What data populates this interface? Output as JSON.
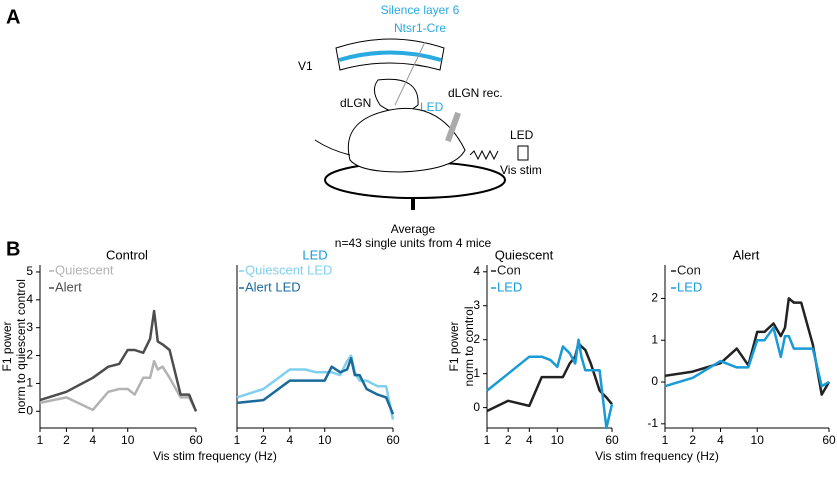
{
  "figure": {
    "panel_a_label": "A",
    "panel_b_label": "B",
    "diagram": {
      "title_lines": [
        "Silence layer 6",
        "Ntsr1-Cre"
      ],
      "v1": "V1",
      "dlgn": "dLGN",
      "led_opto": "LED",
      "dlgn_rec": "dLGN rec.",
      "led_stim": "LED",
      "vis_stim": "Vis stim"
    },
    "average_title": "Average",
    "average_subtitle": "n=43 single units from 4 mice"
  },
  "chart_data": [
    {
      "type": "line",
      "title": "Control",
      "title_color": "#000000",
      "log_x": true,
      "ylabel": [
        "F1 power",
        "norm to quiescent control"
      ],
      "xlabel": "Vis stim frequency (Hz)",
      "x": [
        1,
        2,
        4,
        6,
        8,
        10,
        12,
        15,
        18,
        20,
        22,
        25,
        30,
        40,
        50,
        60
      ],
      "xlim": [
        1,
        60
      ],
      "xticks": [
        1,
        2,
        4,
        10,
        60
      ],
      "ylim": [
        -0.6,
        5.25
      ],
      "yticks": [
        0,
        1,
        2,
        3,
        4,
        5
      ],
      "series": [
        {
          "name": "Quiescent",
          "color": "#b3b3b3",
          "values": [
            0.3,
            0.5,
            0.05,
            0.7,
            0.8,
            0.8,
            0.6,
            1.2,
            1.2,
            1.8,
            1.5,
            1.6,
            1.2,
            0.5,
            0.5,
            0
          ]
        },
        {
          "name": "Alert",
          "color": "#4d4d4d",
          "values": [
            0.4,
            0.7,
            1.2,
            1.6,
            1.7,
            2.2,
            2.2,
            2.1,
            2.6,
            3.6,
            2.5,
            2.4,
            2.2,
            0.6,
            0.6,
            0
          ]
        }
      ]
    },
    {
      "type": "line",
      "title": "LED",
      "title_color": "#1a9ad6",
      "log_x": true,
      "x": [
        1,
        2,
        4,
        6,
        8,
        10,
        12,
        15,
        18,
        20,
        22,
        25,
        30,
        40,
        50,
        60
      ],
      "xlim": [
        1,
        60
      ],
      "xticks": [
        1,
        2,
        4,
        10,
        60
      ],
      "ylim": [
        -0.6,
        5.25
      ],
      "series": [
        {
          "name": "Quiescent LED",
          "color": "#7fd0ef",
          "values": [
            0.5,
            0.8,
            1.5,
            1.5,
            1.4,
            1.4,
            1.4,
            1.3,
            1.8,
            2.0,
            1.4,
            1.1,
            1.1,
            0.9,
            0.9,
            -0.3
          ]
        },
        {
          "name": "Alert LED",
          "color": "#1a6a9a",
          "values": [
            0.3,
            0.4,
            1.1,
            1.1,
            1.1,
            1.1,
            1.6,
            1.4,
            1.5,
            1.9,
            1.3,
            1.3,
            0.8,
            0.6,
            0.5,
            -0.1
          ]
        }
      ]
    },
    {
      "type": "line",
      "title": "Quiescent",
      "title_color": "#000000",
      "log_x": true,
      "ylabel": [
        "F1 power",
        "norm to control"
      ],
      "xlabel": "Vis stim frequency (Hz)",
      "x": [
        1,
        2,
        4,
        6,
        8,
        10,
        12,
        15,
        18,
        20,
        22,
        25,
        30,
        40,
        50,
        60
      ],
      "xlim": [
        1,
        60
      ],
      "xticks": [
        1,
        2,
        4,
        10,
        60
      ],
      "ylim": [
        -0.6,
        4.2
      ],
      "yticks": [
        0,
        1,
        2,
        3,
        4
      ],
      "series": [
        {
          "name": "Con",
          "color": "#222222",
          "values": [
            -0.1,
            0.2,
            0.05,
            0.9,
            0.9,
            0.9,
            0.9,
            1.3,
            1.5,
            1.9,
            1.8,
            1.7,
            1.3,
            0.5,
            0.3,
            0.1
          ]
        },
        {
          "name": "LED",
          "color": "#1a9ad6",
          "values": [
            0.5,
            1.0,
            1.5,
            1.5,
            1.4,
            1.2,
            1.8,
            1.6,
            1.3,
            2.0,
            1.5,
            1.1,
            1.1,
            1.1,
            -0.6,
            0.1
          ]
        }
      ]
    },
    {
      "type": "line",
      "title": "Alert",
      "title_color": "#000000",
      "log_x": true,
      "x": [
        1,
        2,
        4,
        6,
        8,
        10,
        12,
        15,
        18,
        20,
        22,
        25,
        30,
        40,
        50,
        60
      ],
      "xlim": [
        1,
        60
      ],
      "xticks": [
        1,
        2,
        4,
        10,
        60
      ],
      "ylim": [
        -1.1,
        2.8
      ],
      "yticks": [
        -1,
        0,
        1,
        2
      ],
      "series": [
        {
          "name": "Con",
          "color": "#222222",
          "values": [
            0.15,
            0.25,
            0.45,
            0.8,
            0.4,
            1.2,
            1.2,
            1.4,
            1.1,
            1.3,
            2.0,
            1.9,
            1.9,
            0.9,
            -0.3,
            0
          ]
        },
        {
          "name": "LED",
          "color": "#1a9ad6",
          "values": [
            -0.1,
            0.1,
            0.5,
            0.35,
            0.35,
            1.0,
            1.0,
            1.3,
            0.6,
            1.1,
            1.1,
            0.8,
            0.8,
            0.8,
            -0.1,
            0
          ]
        }
      ]
    }
  ]
}
